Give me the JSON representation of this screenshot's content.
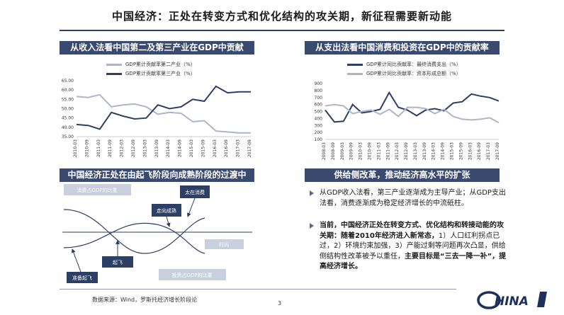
{
  "title": "中国经济：正处在转变方式和优化结构的攻关期，新征程需要新动能",
  "left_chart": {
    "banner": "从收入法看中国第二及第三产业在GDP中贡献",
    "legend": [
      "GDP累计贡献率第二产业（%）",
      "GDP累计贡献率第三产业（%）"
    ],
    "colors": [
      "#aeb5c9",
      "#2e3f66"
    ]
  },
  "right_chart": {
    "banner": "从支出法看中国消费和投资在GDP中的贡献率",
    "legend": [
      "GDP累计同比贡献率：最终消费支出（%）",
      "GDP累计同比贡献率：资本形成总额（%）"
    ],
    "colors": [
      "#2e3f66",
      "#aeb5c9"
    ]
  },
  "chart_data": [
    {
      "type": "line",
      "title": "从收入法看中国第二及第三产业在GDP中贡献",
      "ylim": [
        35,
        65
      ],
      "yticks": [
        "35.00",
        "40.00",
        "45.00",
        "50.00",
        "55.00",
        "60.00",
        "65.00"
      ],
      "categories": [
        "2010-03",
        "2010-09",
        "2011-03",
        "2011-09",
        "2012-03",
        "2012-09",
        "2013-03",
        "2013-09",
        "2014-03",
        "2014-09",
        "2015-03",
        "2015-09",
        "2016-03",
        "2016-09",
        "2017-03",
        "2017-09"
      ],
      "series": [
        {
          "name": "GDP累计贡献率第二产业（%）",
          "values": [
            56.5,
            56,
            57.5,
            51,
            52,
            52.5,
            51,
            47,
            48,
            47.5,
            43,
            43.5,
            38,
            37.5,
            37,
            37
          ]
        },
        {
          "name": "GDP累计贡献率第三产业（%）",
          "values": [
            41.5,
            41,
            39,
            48,
            46,
            44.5,
            45,
            52,
            50,
            51,
            55,
            54,
            62,
            58.5,
            59,
            59
          ]
        }
      ]
    },
    {
      "type": "line",
      "title": "从支出法看中国消费和投资在GDP中的贡献率",
      "ylim": [
        100,
        900
      ],
      "yticks": [
        "100",
        "200",
        "300",
        "400",
        "500",
        "600",
        "700",
        "800",
        "900"
      ],
      "categories": [
        "2008-03",
        "2008-09",
        "2009-03",
        "2009-09",
        "2010-03",
        "2010-09",
        "2011-03",
        "2011-09",
        "2012-03",
        "2012-09",
        "2013-03",
        "2013-09",
        "2014-03",
        "2014-09",
        "2015-03",
        "2015-09",
        "2016-03",
        "2016-09",
        "2017-03",
        "2017-09"
      ],
      "series": [
        {
          "name": "GDP累计同比贡献率：最终消费支出（%）",
          "values": [
            520,
            350,
            360,
            600,
            480,
            500,
            530,
            770,
            560,
            520,
            440,
            520,
            540,
            510,
            620,
            640,
            750,
            720,
            700,
            650
          ]
        },
        {
          "name": "GDP累计同比贡献率：资本形成总额（%）",
          "values": [
            580,
            600,
            580,
            470,
            500,
            520,
            460,
            530,
            430,
            560,
            560,
            540,
            470,
            530,
            430,
            390,
            380,
            390,
            410,
            340
          ]
        }
      ]
    }
  ],
  "diagram": {
    "banner": "中国经济正处在由起飞阶段向成熟阶段的过渡中",
    "labels": {
      "consumption": "消费占GDP的比重",
      "expand": "太在消费",
      "mature": "走向成熟",
      "takeoff": "起飞",
      "time": "时间",
      "prepare": "准备起飞",
      "investment": "投资占GDP的比重"
    }
  },
  "right_text": {
    "banner": "供给侧改革，推动经济高水平的扩张",
    "p1": "从GDP收入法看，第三产业逐渐成为主导产业；从GDP支出法看，消费逐渐成为稳定经济增长的中流砥柱。",
    "p2_bold": "当前，中国经济正处在转变方式、优化结构和转接动能的攻关期：随着2010年经济进入新常态，",
    "p2_normal": "1）人口红利拐点已过，2）环境约束加强，3）产能过剩等问题再次凸显，供给侧结构性改革被予以重任，",
    "p2_tail": "主要目标是“三去一降一补”，提高经济增长。"
  },
  "source": "数据来源：Wind，罗斯托经济增长阶段论",
  "page_number": "3",
  "logo_text": "HINA"
}
